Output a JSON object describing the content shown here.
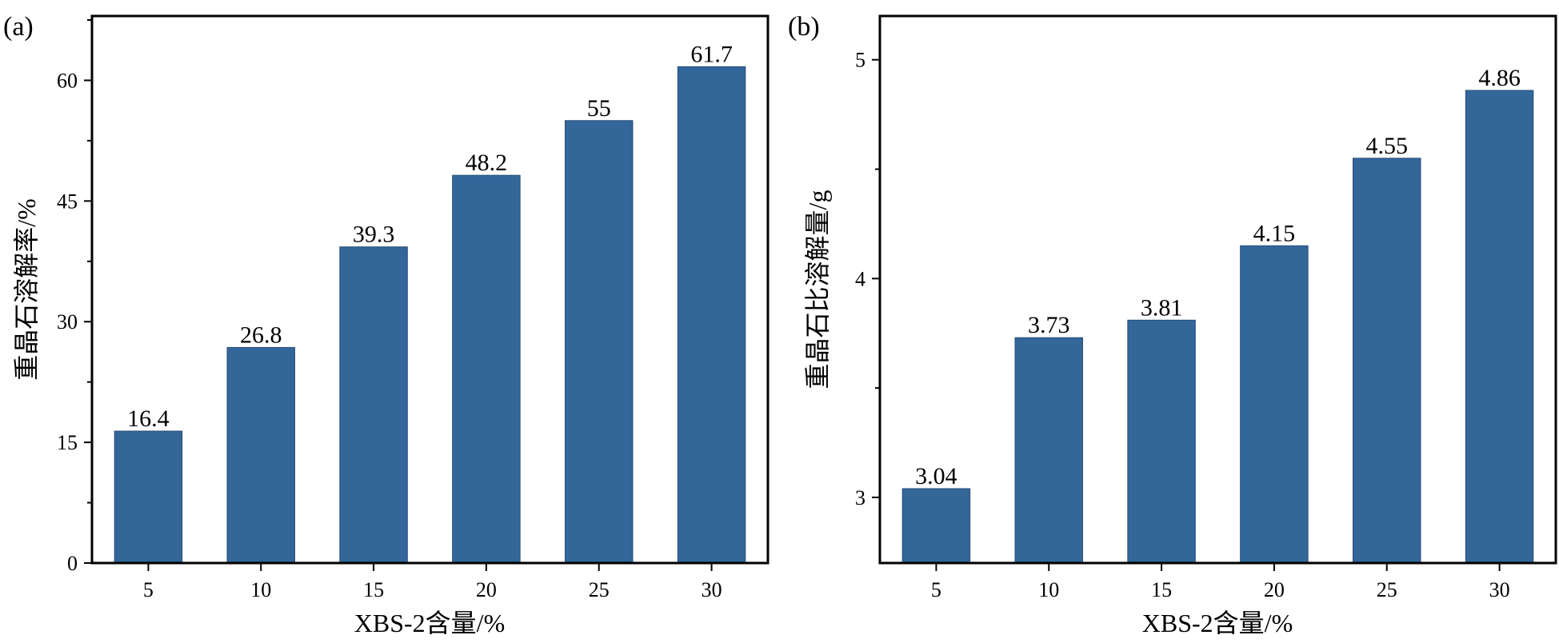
{
  "chart_data": [
    {
      "panel_label": "(a)",
      "type": "bar",
      "categories": [
        "5",
        "10",
        "15",
        "20",
        "25",
        "30"
      ],
      "values": [
        16.4,
        26.8,
        39.3,
        48.2,
        55,
        61.7
      ],
      "value_labels": [
        "16.4",
        "26.8",
        "39.3",
        "48.2",
        "55",
        "61.7"
      ],
      "xlabel": "XBS-2含量/%",
      "ylabel": "重晶石溶解率/%",
      "ylim": [
        0,
        68
      ],
      "yticks": [
        0,
        15,
        30,
        45,
        60
      ],
      "ytick_labels": [
        "0",
        "15",
        "30",
        "45",
        "60"
      ],
      "bar_color": "#336699",
      "grid": false
    },
    {
      "panel_label": "(b)",
      "type": "bar",
      "categories": [
        "5",
        "10",
        "15",
        "20",
        "25",
        "30"
      ],
      "values": [
        3.04,
        3.73,
        3.81,
        4.15,
        4.55,
        4.86
      ],
      "value_labels": [
        "3.04",
        "3.73",
        "3.81",
        "4.15",
        "4.55",
        "4.86"
      ],
      "xlabel": "XBS-2含量/%",
      "ylabel": "重晶石比溶解量/g",
      "ylim": [
        2.7,
        5.2
      ],
      "yticks": [
        3,
        4,
        5
      ],
      "ytick_labels": [
        "3",
        "4",
        "5"
      ],
      "bar_color": "#336699",
      "grid": false
    }
  ]
}
